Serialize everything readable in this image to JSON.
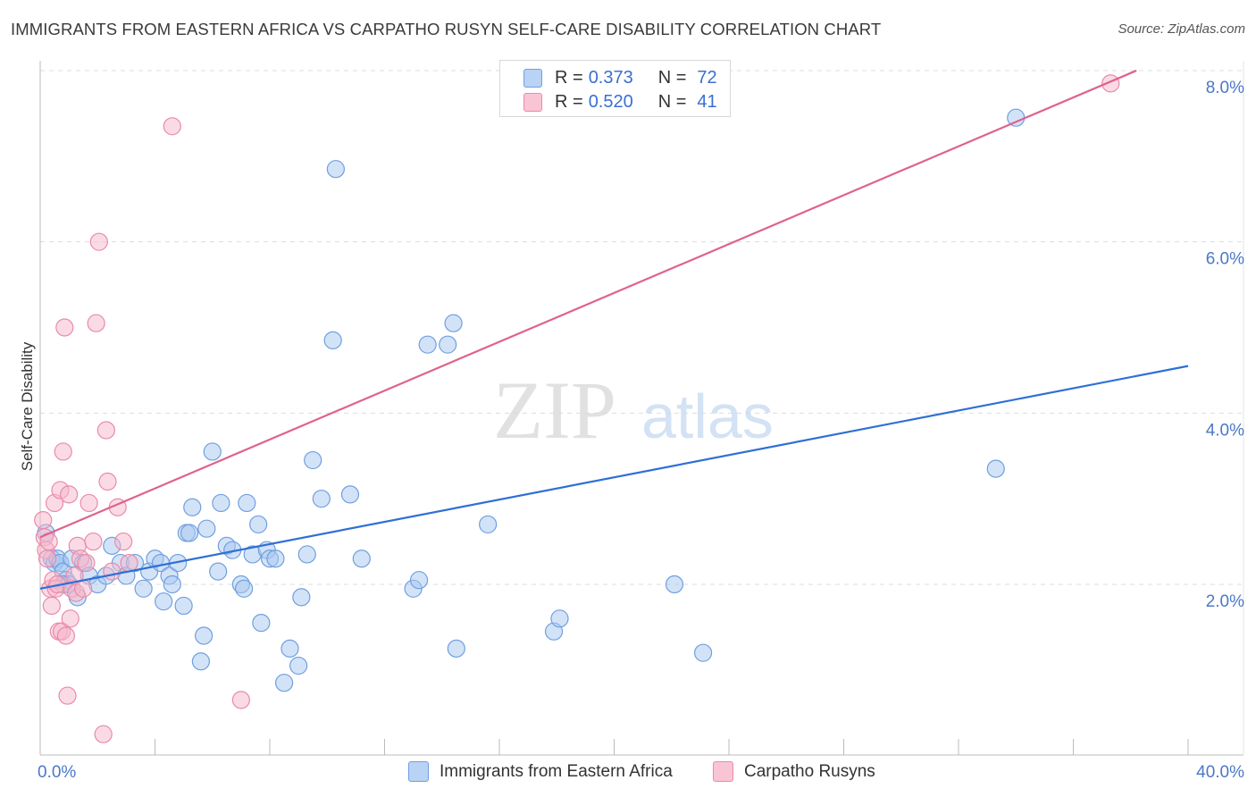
{
  "header": {
    "title": "IMMIGRANTS FROM EASTERN AFRICA VS CARPATHO RUSYN SELF-CARE DISABILITY CORRELATION CHART",
    "source": "Source: ZipAtlas.com"
  },
  "legend": {
    "rows": [
      {
        "r_label": "R =",
        "r_value": "0.373",
        "n_label": "N =",
        "n_value": "72"
      },
      {
        "r_label": "R =",
        "r_value": "0.520",
        "n_label": "N =",
        "n_value": "41"
      }
    ]
  },
  "bottom_legend": {
    "series1": "Immigrants from Eastern Africa",
    "series2": "Carpatho Rusyns"
  },
  "watermark": {
    "zip": "ZIP",
    "atlas": "atlas"
  },
  "colors": {
    "blue_fill": "#a8c8f0",
    "blue_stroke": "#6f9fe0",
    "blue_line": "#2e6fd6",
    "pink_fill": "#f5b8cb",
    "pink_stroke": "#ea8aa8",
    "pink_line": "#e0628c",
    "tick_text": "#4a78c8",
    "grid": "#dddddd"
  },
  "chart_data": {
    "type": "scatter",
    "title": "IMMIGRANTS FROM EASTERN AFRICA VS CARPATHO RUSYN SELF-CARE DISABILITY CORRELATION CHART",
    "xlabel": "",
    "ylabel": "Self-Care Disability",
    "xlim": [
      0,
      40
    ],
    "ylim": [
      0,
      8.3
    ],
    "x_tick_labels": [
      "0.0%",
      "40.0%"
    ],
    "y_ticks": [
      2,
      4,
      6,
      8
    ],
    "y_tick_labels": [
      "2.0%",
      "4.0%",
      "6.0%",
      "8.0%"
    ],
    "series": [
      {
        "name": "Immigrants from Eastern Africa",
        "R": 0.373,
        "N": 72,
        "trend": {
          "x": [
            0,
            40
          ],
          "y": [
            1.95,
            4.55
          ]
        },
        "points": [
          [
            0.2,
            2.6
          ],
          [
            0.4,
            2.3
          ],
          [
            0.5,
            2.25
          ],
          [
            0.6,
            2.3
          ],
          [
            0.7,
            2.25
          ],
          [
            0.8,
            2.15
          ],
          [
            0.9,
            2.05
          ],
          [
            1.0,
            2.0
          ],
          [
            1.1,
            2.3
          ],
          [
            1.3,
            1.85
          ],
          [
            1.5,
            2.25
          ],
          [
            1.7,
            2.1
          ],
          [
            2.0,
            2.0
          ],
          [
            2.3,
            2.1
          ],
          [
            2.5,
            2.45
          ],
          [
            2.8,
            2.25
          ],
          [
            3.0,
            2.1
          ],
          [
            3.3,
            2.25
          ],
          [
            3.6,
            1.95
          ],
          [
            3.8,
            2.15
          ],
          [
            4.0,
            2.3
          ],
          [
            4.2,
            2.25
          ],
          [
            4.3,
            1.8
          ],
          [
            4.5,
            2.1
          ],
          [
            4.6,
            2.0
          ],
          [
            4.8,
            2.25
          ],
          [
            5.0,
            1.75
          ],
          [
            5.1,
            2.6
          ],
          [
            5.2,
            2.6
          ],
          [
            5.3,
            2.9
          ],
          [
            5.6,
            1.1
          ],
          [
            5.7,
            1.4
          ],
          [
            5.8,
            2.65
          ],
          [
            6.0,
            3.55
          ],
          [
            6.2,
            2.15
          ],
          [
            6.3,
            2.95
          ],
          [
            6.5,
            2.45
          ],
          [
            6.7,
            2.4
          ],
          [
            7.0,
            2.0
          ],
          [
            7.1,
            1.95
          ],
          [
            7.2,
            2.95
          ],
          [
            7.4,
            2.35
          ],
          [
            7.6,
            2.7
          ],
          [
            7.7,
            1.55
          ],
          [
            7.9,
            2.4
          ],
          [
            8.0,
            2.3
          ],
          [
            8.2,
            2.3
          ],
          [
            8.5,
            0.85
          ],
          [
            8.7,
            1.25
          ],
          [
            9.0,
            1.05
          ],
          [
            9.1,
            1.85
          ],
          [
            9.3,
            2.35
          ],
          [
            9.5,
            3.45
          ],
          [
            9.8,
            3.0
          ],
          [
            10.2,
            4.85
          ],
          [
            10.3,
            6.85
          ],
          [
            10.8,
            3.05
          ],
          [
            11.2,
            2.3
          ],
          [
            13.0,
            1.95
          ],
          [
            13.2,
            2.05
          ],
          [
            13.5,
            4.8
          ],
          [
            14.2,
            4.8
          ],
          [
            14.4,
            5.05
          ],
          [
            14.5,
            1.25
          ],
          [
            15.6,
            2.7
          ],
          [
            17.9,
            1.45
          ],
          [
            18.1,
            1.6
          ],
          [
            22.1,
            2.0
          ],
          [
            23.1,
            1.2
          ],
          [
            33.3,
            3.35
          ],
          [
            34.0,
            7.45
          ],
          [
            0.8,
            2.0
          ]
        ]
      },
      {
        "name": "Carpatho Rusyns",
        "R": 0.52,
        "N": 41,
        "trend": {
          "x": [
            0,
            38.2
          ],
          "y": [
            2.55,
            8.0
          ]
        },
        "points": [
          [
            0.1,
            2.75
          ],
          [
            0.15,
            2.55
          ],
          [
            0.2,
            2.4
          ],
          [
            0.25,
            2.3
          ],
          [
            0.3,
            2.5
          ],
          [
            0.35,
            1.95
          ],
          [
            0.4,
            1.75
          ],
          [
            0.45,
            2.05
          ],
          [
            0.5,
            2.95
          ],
          [
            0.55,
            1.95
          ],
          [
            0.6,
            2.0
          ],
          [
            0.65,
            1.45
          ],
          [
            0.7,
            3.1
          ],
          [
            0.75,
            1.45
          ],
          [
            0.8,
            3.55
          ],
          [
            0.85,
            5.0
          ],
          [
            0.9,
            1.4
          ],
          [
            0.95,
            0.7
          ],
          [
            1.0,
            3.05
          ],
          [
            1.05,
            1.6
          ],
          [
            1.1,
            1.95
          ],
          [
            1.2,
            2.1
          ],
          [
            1.25,
            1.9
          ],
          [
            1.3,
            2.45
          ],
          [
            1.4,
            2.3
          ],
          [
            1.5,
            1.95
          ],
          [
            1.6,
            2.25
          ],
          [
            1.7,
            2.95
          ],
          [
            1.85,
            2.5
          ],
          [
            1.95,
            5.05
          ],
          [
            2.05,
            6.0
          ],
          [
            2.2,
            0.25
          ],
          [
            2.3,
            3.8
          ],
          [
            2.35,
            3.2
          ],
          [
            2.5,
            2.15
          ],
          [
            2.7,
            2.9
          ],
          [
            2.9,
            2.5
          ],
          [
            3.1,
            2.25
          ],
          [
            4.6,
            7.35
          ],
          [
            7.0,
            0.65
          ],
          [
            37.3,
            7.85
          ]
        ]
      }
    ]
  }
}
